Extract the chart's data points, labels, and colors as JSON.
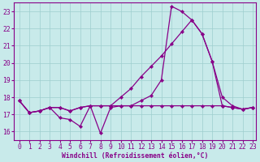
{
  "xlabel": "Windchill (Refroidissement éolien,°C)",
  "xlim": [
    -0.5,
    23.3
  ],
  "ylim": [
    15.5,
    23.5
  ],
  "yticks": [
    16,
    17,
    18,
    19,
    20,
    21,
    22,
    23
  ],
  "xticks": [
    0,
    1,
    2,
    3,
    4,
    5,
    6,
    7,
    8,
    9,
    10,
    11,
    12,
    13,
    14,
    15,
    16,
    17,
    18,
    19,
    20,
    21,
    22,
    23
  ],
  "background_color": "#c8eaea",
  "grid_color": "#9ecece",
  "line_color": "#880088",
  "fontsize": 5.8,
  "marker": "D",
  "markersize": 2.2,
  "linewidth": 0.9,
  "series": [
    {
      "x": [
        0,
        1,
        2,
        3,
        4,
        5,
        6,
        7,
        8,
        9,
        10,
        11,
        12,
        13,
        14,
        15,
        16,
        17,
        18,
        19,
        20,
        21,
        22,
        23
      ],
      "y": [
        17.8,
        17.1,
        17.2,
        17.4,
        16.8,
        16.7,
        16.3,
        17.5,
        15.9,
        17.4,
        17.5,
        17.5,
        17.8,
        18.1,
        19.0,
        23.3,
        23.0,
        22.5,
        21.7,
        20.1,
        18.0,
        17.5,
        17.3,
        17.4
      ]
    },
    {
      "x": [
        0,
        1,
        2,
        3,
        4,
        5,
        6,
        7,
        8,
        9,
        10,
        11,
        12,
        13,
        14,
        15,
        16,
        17,
        18,
        19,
        20,
        21,
        22,
        23
      ],
      "y": [
        17.8,
        17.1,
        17.2,
        17.4,
        17.4,
        17.2,
        17.4,
        17.5,
        17.5,
        17.5,
        18.0,
        18.5,
        19.2,
        19.8,
        20.4,
        21.1,
        21.8,
        22.5,
        21.7,
        20.1,
        17.5,
        17.4,
        17.3,
        17.4
      ]
    },
    {
      "x": [
        0,
        1,
        2,
        3,
        4,
        5,
        6,
        7,
        8,
        9,
        10,
        11,
        12,
        13,
        14,
        15,
        16,
        17,
        18,
        19,
        20,
        21,
        22,
        23
      ],
      "y": [
        17.8,
        17.1,
        17.2,
        17.4,
        17.4,
        17.2,
        17.4,
        17.5,
        17.5,
        17.5,
        17.5,
        17.5,
        17.5,
        17.5,
        17.5,
        17.5,
        17.5,
        17.5,
        17.5,
        17.5,
        17.5,
        17.4,
        17.3,
        17.4
      ]
    }
  ]
}
